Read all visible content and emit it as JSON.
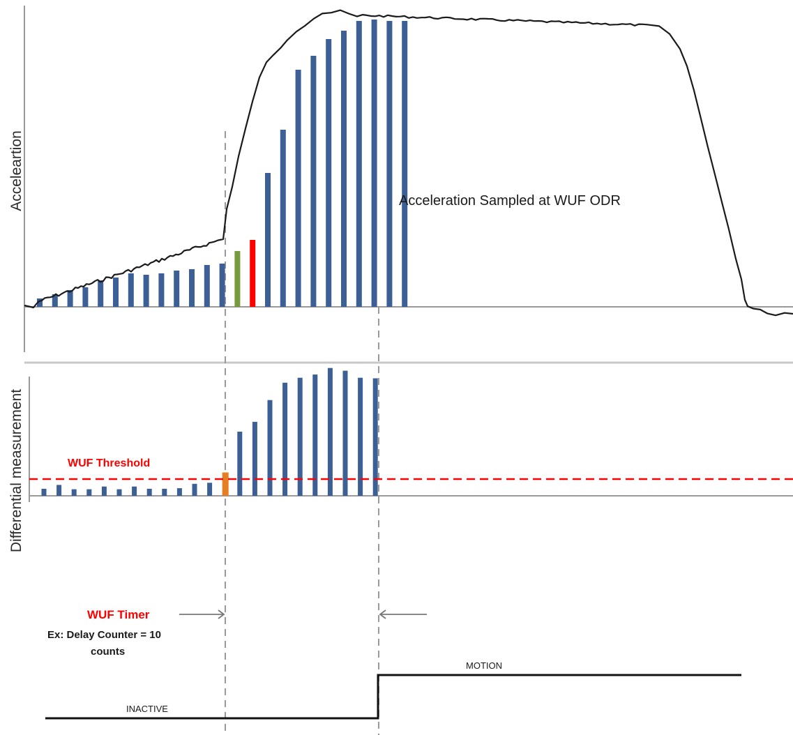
{
  "top_panel": {
    "ylabel": "Acceleartion",
    "annotation": "Acceleration Sampled  at WUF ODR",
    "samples": [
      {
        "value": 0.06,
        "status": "below"
      },
      {
        "value": 0.09,
        "status": "below"
      },
      {
        "value": 0.12,
        "status": "below"
      },
      {
        "value": 0.14,
        "status": "below"
      },
      {
        "value": 0.19,
        "status": "below"
      },
      {
        "value": 0.21,
        "status": "below"
      },
      {
        "value": 0.24,
        "status": "below"
      },
      {
        "value": 0.23,
        "status": "below"
      },
      {
        "value": 0.24,
        "status": "below"
      },
      {
        "value": 0.26,
        "status": "below"
      },
      {
        "value": 0.27,
        "status": "below"
      },
      {
        "value": 0.3,
        "status": "below"
      },
      {
        "value": 0.31,
        "status": "below"
      },
      {
        "value": 0.4,
        "status": "pre-trigger"
      },
      {
        "value": 0.48,
        "status": "trigger"
      },
      {
        "value": 0.96,
        "status": "motion"
      },
      {
        "value": 1.27,
        "status": "motion"
      },
      {
        "value": 1.7,
        "status": "motion"
      },
      {
        "value": 1.8,
        "status": "motion"
      },
      {
        "value": 1.92,
        "status": "motion"
      },
      {
        "value": 1.98,
        "status": "motion"
      },
      {
        "value": 2.05,
        "status": "motion"
      },
      {
        "value": 2.06,
        "status": "motion"
      },
      {
        "value": 2.05,
        "status": "motion"
      },
      {
        "value": 2.05,
        "status": "motion"
      }
    ]
  },
  "bottom_panel": {
    "ylabel": "Differential measurement",
    "threshold_label": "WUF Threshold",
    "threshold_value": 0.68,
    "diffs": [
      0.26,
      0.4,
      0.24,
      0.24,
      0.34,
      0.24,
      0.34,
      0.26,
      0.26,
      0.28,
      0.44,
      0.48,
      0.86,
      2.36,
      2.72,
      3.52,
      4.16,
      4.34,
      4.46,
      4.7,
      4.6,
      4.34,
      4.32
    ]
  },
  "timer": {
    "title": "WUF Timer",
    "desc_line1": "Ex: Delay Counter = 10",
    "desc_line2": "counts"
  },
  "states": {
    "motion_label": "MOTION",
    "inactive_label": "INACTIVE"
  },
  "colors": {
    "bar": "#3c5f96",
    "pre_trigger": "#779a3c",
    "trigger": "#ff0000",
    "bar_over_threshold": "#e67e22",
    "threshold": "#ff0000",
    "curve": "#1a1a1a",
    "guide": "#999999",
    "axis": "#999999"
  }
}
